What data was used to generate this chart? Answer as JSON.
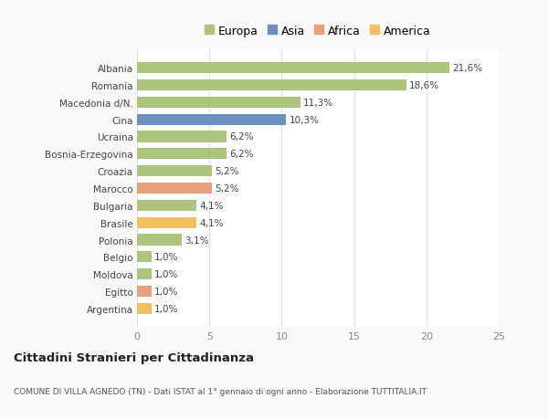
{
  "countries": [
    "Albania",
    "Romania",
    "Macedonia d/N.",
    "Cina",
    "Ucraina",
    "Bosnia-Erzegovina",
    "Croazia",
    "Marocco",
    "Bulgaria",
    "Brasile",
    "Polonia",
    "Belgio",
    "Moldova",
    "Egitto",
    "Argentina"
  ],
  "values": [
    21.6,
    18.6,
    11.3,
    10.3,
    6.2,
    6.2,
    5.2,
    5.2,
    4.1,
    4.1,
    3.1,
    1.0,
    1.0,
    1.0,
    1.0
  ],
  "labels": [
    "21,6%",
    "18,6%",
    "11,3%",
    "10,3%",
    "6,2%",
    "6,2%",
    "5,2%",
    "5,2%",
    "4,1%",
    "4,1%",
    "3,1%",
    "1,0%",
    "1,0%",
    "1,0%",
    "1,0%"
  ],
  "colors": [
    "#adc47d",
    "#adc47d",
    "#adc47d",
    "#6b8fbf",
    "#adc47d",
    "#adc47d",
    "#adc47d",
    "#e8a07a",
    "#adc47d",
    "#f0c060",
    "#adc47d",
    "#adc47d",
    "#adc47d",
    "#e8a07a",
    "#f0c060"
  ],
  "legend": {
    "Europa": "#adc47d",
    "Asia": "#6b8fbf",
    "Africa": "#e8a07a",
    "America": "#f0c060"
  },
  "xlim": [
    0,
    25
  ],
  "xticks": [
    0,
    5,
    10,
    15,
    20,
    25
  ],
  "title": "Cittadini Stranieri per Cittadinanza",
  "subtitle": "COMUNE DI VILLA AGNEDO (TN) - Dati ISTAT al 1° gennaio di ogni anno - Elaborazione TUTTITALIA.IT",
  "bg_color": "#f9f9f9",
  "bar_bg_color": "#ffffff",
  "grid_color": "#e0e0e0"
}
